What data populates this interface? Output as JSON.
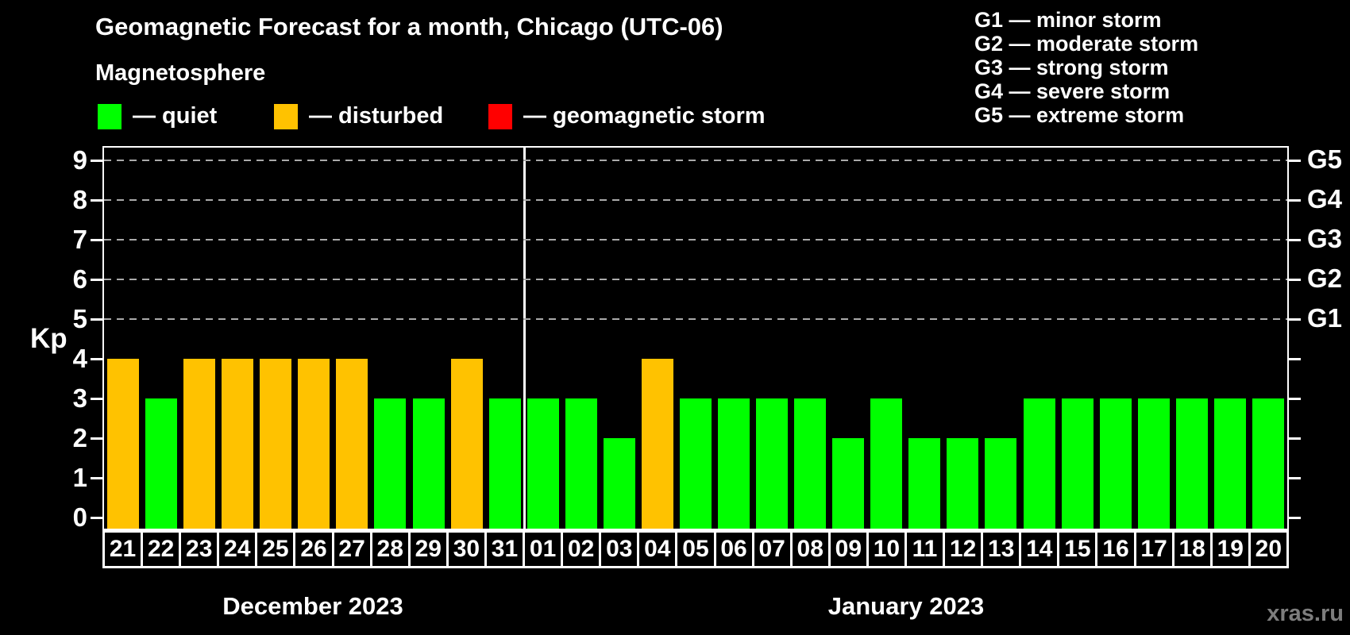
{
  "header": {
    "title": "Geomagnetic Forecast for a month, Chicago (UTC-06)",
    "subtitle": "Magnetosphere"
  },
  "legend": {
    "items": [
      {
        "name": "quiet",
        "label": "— quiet",
        "color": "#00ff00"
      },
      {
        "name": "disturbed",
        "label": "— disturbed",
        "color": "#ffc200"
      },
      {
        "name": "storm",
        "label": "— geomagnetic storm",
        "color": "#ff0000"
      }
    ]
  },
  "storm_scale": {
    "lines": [
      "G1 — minor storm",
      "G2 — moderate storm",
      "G3 — strong storm",
      "G4 — severe storm",
      "G5 — extreme storm"
    ]
  },
  "watermark": "xras.ru",
  "chart_data": {
    "type": "bar",
    "title": "Geomagnetic Forecast for a month, Chicago (UTC-06)",
    "ylabel": "Kp",
    "ylim": [
      0,
      9
    ],
    "y_ticks": [
      0,
      1,
      2,
      3,
      4,
      5,
      6,
      7,
      8,
      9
    ],
    "grid": "dashed horizontal gridlines only at Kp 5 through 9",
    "legend_position": "top",
    "right_axis_labels": [
      {
        "label": "G1",
        "kp": 5
      },
      {
        "label": "G2",
        "kp": 6
      },
      {
        "label": "G3",
        "kp": 7
      },
      {
        "label": "G4",
        "kp": 8
      },
      {
        "label": "G5",
        "kp": 9
      }
    ],
    "categories": [
      "21",
      "22",
      "23",
      "24",
      "25",
      "26",
      "27",
      "28",
      "29",
      "30",
      "31",
      "01",
      "02",
      "03",
      "04",
      "05",
      "06",
      "07",
      "08",
      "09",
      "10",
      "11",
      "12",
      "13",
      "14",
      "15",
      "16",
      "17",
      "18",
      "19",
      "20"
    ],
    "series": [
      {
        "name": "Kp forecast",
        "values": [
          4,
          3,
          4,
          4,
          4,
          4,
          4,
          3,
          3,
          4,
          3,
          3,
          3,
          2,
          4,
          3,
          3,
          3,
          3,
          2,
          3,
          2,
          2,
          2,
          3,
          3,
          3,
          3,
          3,
          3,
          3
        ]
      }
    ],
    "bar_status": [
      "disturbed",
      "quiet",
      "disturbed",
      "disturbed",
      "disturbed",
      "disturbed",
      "disturbed",
      "quiet",
      "quiet",
      "disturbed",
      "quiet",
      "quiet",
      "quiet",
      "quiet",
      "disturbed",
      "quiet",
      "quiet",
      "quiet",
      "quiet",
      "quiet",
      "quiet",
      "quiet",
      "quiet",
      "quiet",
      "quiet",
      "quiet",
      "quiet",
      "quiet",
      "quiet",
      "quiet",
      "quiet"
    ],
    "status_colors": {
      "quiet": "#00ff00",
      "disturbed": "#ffc200",
      "storm": "#ff0000"
    },
    "months": [
      {
        "label": "December 2023",
        "days": 11
      },
      {
        "label": "January 2023",
        "days": 20
      }
    ]
  }
}
